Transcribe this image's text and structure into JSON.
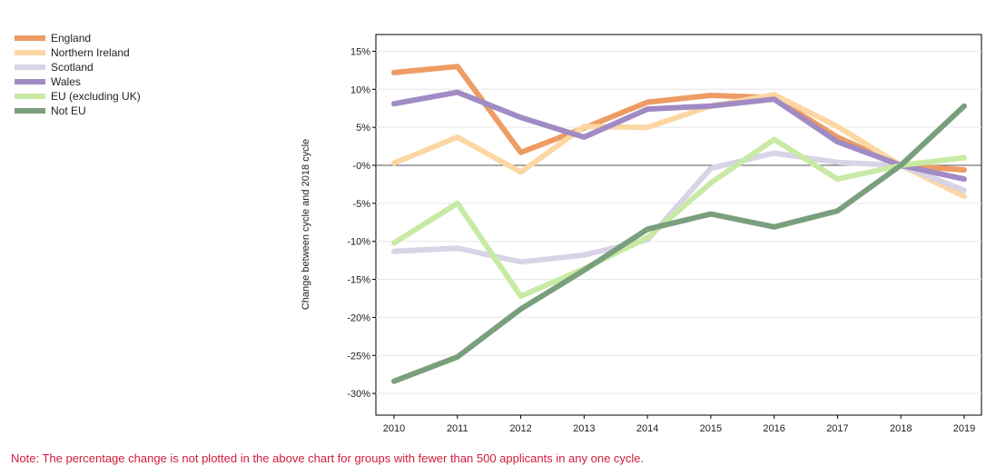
{
  "chart_data": {
    "type": "line",
    "title": "",
    "xlabel": "",
    "ylabel": "Change between cycle and 2018 cycle",
    "x": [
      "2010",
      "2011",
      "2012",
      "2013",
      "2014",
      "2015",
      "2016",
      "2017",
      "2018",
      "2019"
    ],
    "ylim": [
      -32,
      17
    ],
    "yticks": [
      15,
      10,
      5,
      0,
      -5,
      -10,
      -15,
      -20,
      -25,
      -30
    ],
    "ytick_labels": [
      "15%",
      "10%",
      "5%",
      "-0%",
      "-5%",
      "-10%",
      "-15%",
      "-20%",
      "-25%",
      "-30%"
    ],
    "grid": true,
    "legend_position": "top-left",
    "series": [
      {
        "name": "England",
        "color": "#ed9c64",
        "values": [
          12.2,
          13.0,
          1.7,
          4.9,
          8.3,
          9.2,
          8.9,
          3.7,
          0.0,
          -0.6
        ]
      },
      {
        "name": "Northern Ireland",
        "color": "#fcd7a4",
        "values": [
          0.3,
          3.7,
          -0.9,
          5.1,
          5.0,
          7.8,
          9.3,
          5.1,
          0.0,
          -4.1
        ]
      },
      {
        "name": "Scotland",
        "color": "#d9d3e7",
        "values": [
          -11.3,
          -10.9,
          -12.7,
          -11.8,
          -9.8,
          -0.4,
          1.6,
          0.4,
          0.0,
          -3.3
        ]
      },
      {
        "name": "Wales",
        "color": "#a08bc4",
        "values": [
          8.1,
          9.6,
          6.3,
          3.7,
          7.4,
          7.8,
          8.7,
          3.1,
          0.0,
          -1.8
        ]
      },
      {
        "name": "EU (excluding UK)",
        "color": "#c8eaa4",
        "values": [
          -10.2,
          -5.0,
          -17.2,
          -13.6,
          -9.5,
          -2.3,
          3.4,
          -1.8,
          0.0,
          1.0
        ]
      },
      {
        "name": "Not EU",
        "color": "#7a9f7c",
        "values": [
          -28.4,
          -25.2,
          -18.9,
          -13.8,
          -8.4,
          -6.4,
          -8.1,
          -6.0,
          0.0,
          7.8
        ]
      }
    ]
  },
  "note": "Note: The percentage change is not plotted in the above chart for groups with fewer than 500 applicants in any one cycle."
}
